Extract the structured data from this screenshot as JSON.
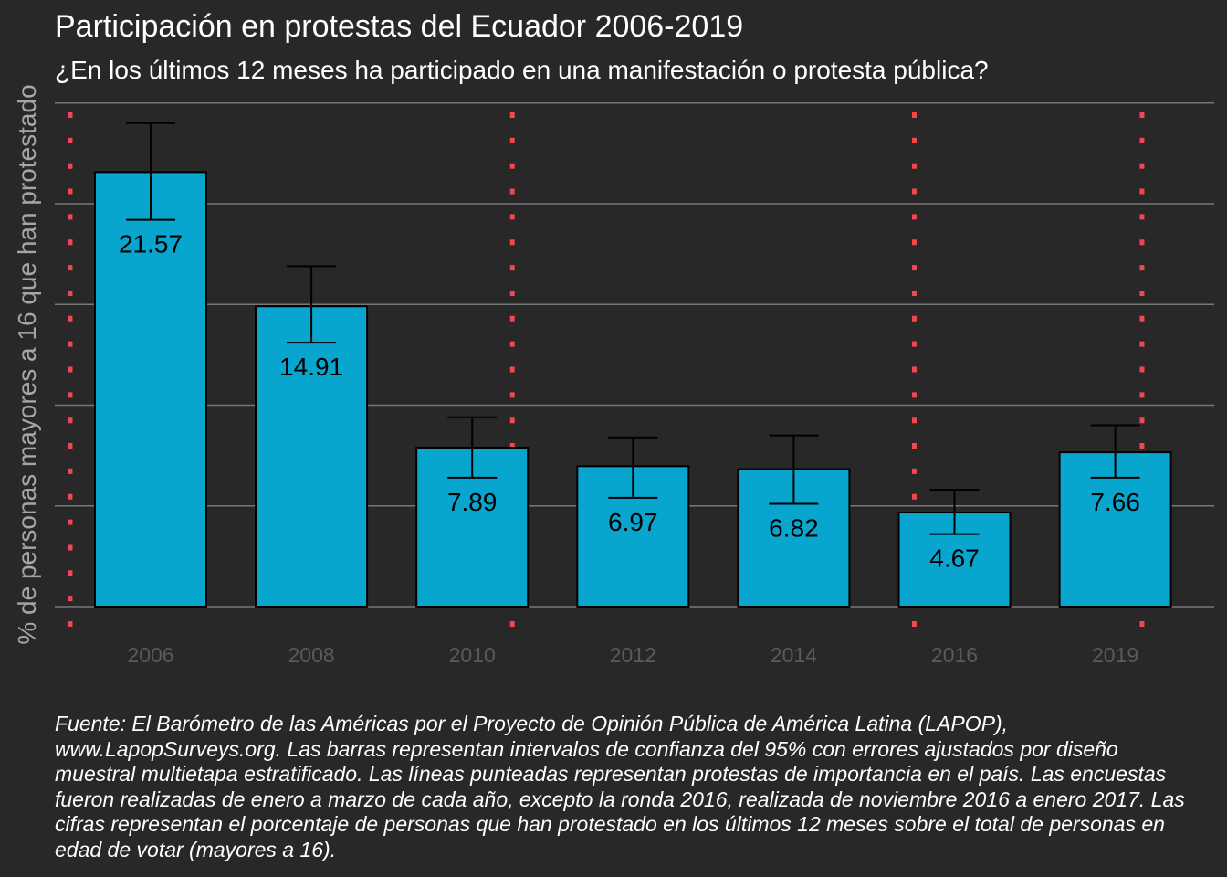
{
  "chart_data": {
    "type": "bar",
    "title": "Participación en protestas del Ecuador 2006-2019",
    "subtitle": "¿En los últimos 12 meses ha participado en una manifestación o protesta pública?",
    "ylabel": "% de personas mayores a 16 que han protestado",
    "xlabel": "",
    "categories": [
      "2006",
      "2008",
      "2010",
      "2012",
      "2014",
      "2016",
      "2019"
    ],
    "values": [
      21.57,
      14.91,
      7.89,
      6.97,
      6.82,
      4.67,
      7.66
    ],
    "value_labels": [
      "21.57",
      "14.91",
      "7.89",
      "6.97",
      "6.82",
      "4.67",
      "7.66"
    ],
    "ci_lower": [
      19.2,
      13.1,
      6.4,
      5.4,
      5.1,
      3.6,
      6.4
    ],
    "ci_upper": [
      24.0,
      16.9,
      9.4,
      8.4,
      8.5,
      5.8,
      9.0
    ],
    "ylim": [
      0,
      25
    ],
    "gridlines": [
      0,
      5,
      10,
      15,
      20,
      25
    ],
    "protest_markers": [
      2005.0,
      2010.5,
      2015.5,
      2019.5
    ],
    "colors": {
      "background": "#282828",
      "bar": "#08a5cf",
      "bar_outline": "#000000",
      "errorbar": "#000000",
      "gridline": "#777777",
      "protest_line": "#f2474f",
      "tick_label": "#5a5a5a",
      "value_label": "#000000"
    }
  },
  "caption": "Fuente: El Barómetro de las Américas por el Proyecto de Opinión Pública de América Latina (LAPOP), www.LapopSurveys.org. Las barras representan intervalos de confianza del 95% con errores ajustados por diseño muestral multietapa estratificado. Las líneas punteadas representan protestas de importancia en el país. Las encuestas fueron realizadas de enero a marzo de cada año, excepto la ronda 2016, realizada de noviembre 2016 a enero 2017. Las cifras representan el porcentaje de personas que han protestado en los últimos 12 meses sobre el total de personas en edad de votar (mayores a 16)."
}
